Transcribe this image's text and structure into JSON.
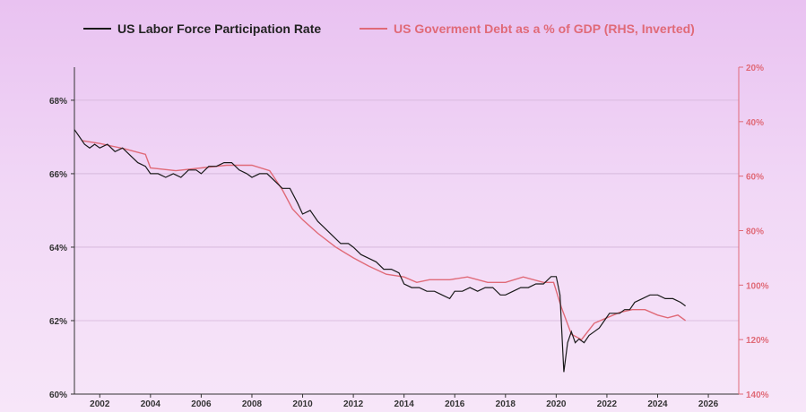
{
  "chart_data": {
    "type": "line",
    "title": "",
    "legend": [
      {
        "name": "US Labor Force Participation Rate",
        "color": "#1a1a1a"
      },
      {
        "name": "US Goverment Debt as a % of GDP (RHS, Inverted)",
        "color": "#e06a78"
      }
    ],
    "x_ticks": [
      "2002",
      "2004",
      "2006",
      "2008",
      "2010",
      "2012",
      "2014",
      "2016",
      "2018",
      "2020",
      "2022",
      "2024",
      "2026"
    ],
    "x_range": [
      2001.0,
      2027.2
    ],
    "y_left": {
      "ticks": [
        "60%",
        "62%",
        "64%",
        "66%",
        "68%"
      ],
      "range": [
        60,
        68.9
      ]
    },
    "y_right": {
      "ticks": [
        "20%",
        "40%",
        "60%",
        "80%",
        "100%",
        "120%",
        "140%"
      ],
      "range": [
        20,
        140
      ],
      "inverted": true
    },
    "series": [
      {
        "name": "US Labor Force Participation Rate",
        "axis": "left",
        "color": "#1a1a1a",
        "points": [
          [
            2001.0,
            67.2
          ],
          [
            2001.2,
            67.0
          ],
          [
            2001.4,
            66.8
          ],
          [
            2001.6,
            66.7
          ],
          [
            2001.8,
            66.8
          ],
          [
            2002.0,
            66.7
          ],
          [
            2002.3,
            66.8
          ],
          [
            2002.6,
            66.6
          ],
          [
            2002.9,
            66.7
          ],
          [
            2003.2,
            66.5
          ],
          [
            2003.5,
            66.3
          ],
          [
            2003.8,
            66.2
          ],
          [
            2004.0,
            66.0
          ],
          [
            2004.3,
            66.0
          ],
          [
            2004.6,
            65.9
          ],
          [
            2004.9,
            66.0
          ],
          [
            2005.2,
            65.9
          ],
          [
            2005.5,
            66.1
          ],
          [
            2005.8,
            66.1
          ],
          [
            2006.0,
            66.0
          ],
          [
            2006.3,
            66.2
          ],
          [
            2006.6,
            66.2
          ],
          [
            2006.9,
            66.3
          ],
          [
            2007.2,
            66.3
          ],
          [
            2007.5,
            66.1
          ],
          [
            2007.8,
            66.0
          ],
          [
            2008.0,
            65.9
          ],
          [
            2008.3,
            66.0
          ],
          [
            2008.6,
            66.0
          ],
          [
            2008.9,
            65.8
          ],
          [
            2009.2,
            65.6
          ],
          [
            2009.5,
            65.6
          ],
          [
            2009.8,
            65.2
          ],
          [
            2010.0,
            64.9
          ],
          [
            2010.3,
            65.0
          ],
          [
            2010.6,
            64.7
          ],
          [
            2010.9,
            64.5
          ],
          [
            2011.2,
            64.3
          ],
          [
            2011.5,
            64.1
          ],
          [
            2011.8,
            64.1
          ],
          [
            2012.0,
            64.0
          ],
          [
            2012.3,
            63.8
          ],
          [
            2012.6,
            63.7
          ],
          [
            2012.9,
            63.6
          ],
          [
            2013.2,
            63.4
          ],
          [
            2013.5,
            63.4
          ],
          [
            2013.8,
            63.3
          ],
          [
            2014.0,
            63.0
          ],
          [
            2014.3,
            62.9
          ],
          [
            2014.6,
            62.9
          ],
          [
            2014.9,
            62.8
          ],
          [
            2015.2,
            62.8
          ],
          [
            2015.5,
            62.7
          ],
          [
            2015.8,
            62.6
          ],
          [
            2016.0,
            62.8
          ],
          [
            2016.3,
            62.8
          ],
          [
            2016.6,
            62.9
          ],
          [
            2016.9,
            62.8
          ],
          [
            2017.2,
            62.9
          ],
          [
            2017.5,
            62.9
          ],
          [
            2017.8,
            62.7
          ],
          [
            2018.0,
            62.7
          ],
          [
            2018.3,
            62.8
          ],
          [
            2018.6,
            62.9
          ],
          [
            2018.9,
            62.9
          ],
          [
            2019.2,
            63.0
          ],
          [
            2019.5,
            63.0
          ],
          [
            2019.8,
            63.2
          ],
          [
            2020.0,
            63.2
          ],
          [
            2020.15,
            62.7
          ],
          [
            2020.3,
            60.6
          ],
          [
            2020.45,
            61.4
          ],
          [
            2020.6,
            61.7
          ],
          [
            2020.75,
            61.4
          ],
          [
            2020.9,
            61.5
          ],
          [
            2021.1,
            61.4
          ],
          [
            2021.3,
            61.6
          ],
          [
            2021.5,
            61.7
          ],
          [
            2021.7,
            61.8
          ],
          [
            2021.9,
            62.0
          ],
          [
            2022.1,
            62.2
          ],
          [
            2022.3,
            62.2
          ],
          [
            2022.5,
            62.2
          ],
          [
            2022.7,
            62.3
          ],
          [
            2022.9,
            62.3
          ],
          [
            2023.1,
            62.5
          ],
          [
            2023.4,
            62.6
          ],
          [
            2023.7,
            62.7
          ],
          [
            2024.0,
            62.7
          ],
          [
            2024.3,
            62.6
          ],
          [
            2024.6,
            62.6
          ],
          [
            2024.9,
            62.5
          ],
          [
            2025.1,
            62.4
          ]
        ]
      },
      {
        "name": "US Goverment Debt as a % of GDP (RHS, Inverted)",
        "axis": "right",
        "color": "#e06a78",
        "points": [
          [
            2001.3,
            47
          ],
          [
            2002.0,
            48
          ],
          [
            2003.0,
            50
          ],
          [
            2003.8,
            52
          ],
          [
            2004.0,
            57
          ],
          [
            2005.0,
            58
          ],
          [
            2006.0,
            57
          ],
          [
            2007.0,
            56
          ],
          [
            2008.0,
            56
          ],
          [
            2008.7,
            58
          ],
          [
            2009.2,
            65
          ],
          [
            2009.6,
            72
          ],
          [
            2010.0,
            76
          ],
          [
            2010.6,
            81
          ],
          [
            2011.3,
            86
          ],
          [
            2012.0,
            90
          ],
          [
            2012.6,
            93
          ],
          [
            2013.3,
            96
          ],
          [
            2014.0,
            97
          ],
          [
            2014.5,
            99
          ],
          [
            2015.0,
            98
          ],
          [
            2015.8,
            98
          ],
          [
            2016.5,
            97
          ],
          [
            2017.3,
            99
          ],
          [
            2018.0,
            99
          ],
          [
            2018.7,
            97
          ],
          [
            2019.5,
            99
          ],
          [
            2019.9,
            99
          ],
          [
            2020.2,
            108
          ],
          [
            2020.6,
            118
          ],
          [
            2021.0,
            120
          ],
          [
            2021.5,
            114
          ],
          [
            2022.0,
            112
          ],
          [
            2022.5,
            110
          ],
          [
            2023.0,
            109
          ],
          [
            2023.5,
            109
          ],
          [
            2024.0,
            111
          ],
          [
            2024.4,
            112
          ],
          [
            2024.8,
            111
          ],
          [
            2025.1,
            113
          ]
        ]
      }
    ]
  }
}
